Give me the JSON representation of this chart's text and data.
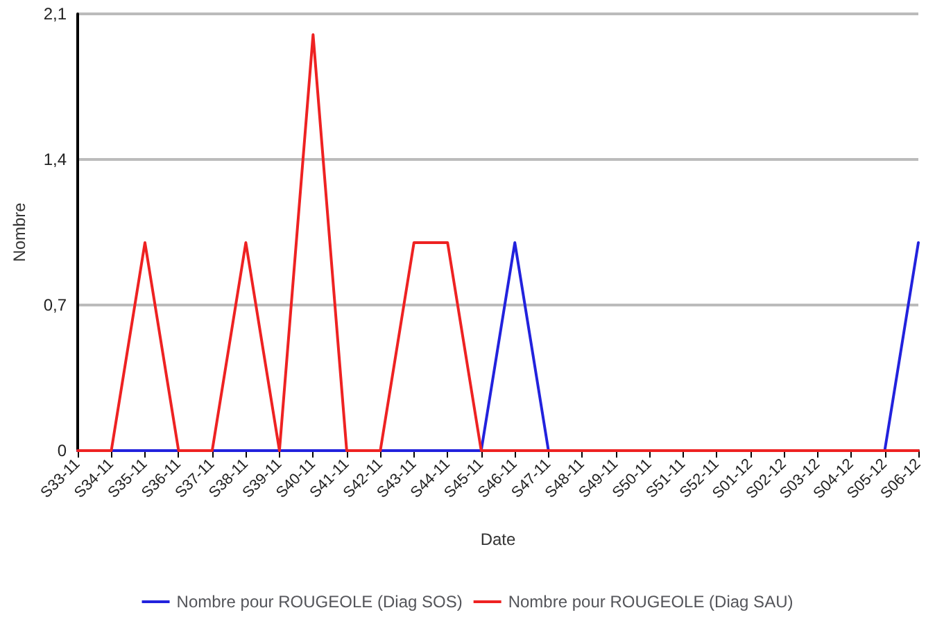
{
  "chart_data": {
    "type": "line",
    "xlabel": "Date",
    "ylabel": "Nombre",
    "categories": [
      "S33-11",
      "S34-11",
      "S35-11",
      "S36-11",
      "S37-11",
      "S38-11",
      "S39-11",
      "S40-11",
      "S41-11",
      "S42-11",
      "S43-11",
      "S44-11",
      "S45-11",
      "S46-11",
      "S47-11",
      "S48-11",
      "S49-11",
      "S50-11",
      "S51-11",
      "S52-11",
      "S01-12",
      "S02-12",
      "S03-12",
      "S04-12",
      "S05-12",
      "S06-12"
    ],
    "series": [
      {
        "name": "Nombre pour ROUGEOLE (Diag SOS)",
        "color": "#2222dd",
        "values": [
          0,
          0,
          0,
          0,
          0,
          0,
          0,
          0,
          0,
          0,
          0,
          0,
          0,
          1,
          0,
          0,
          0,
          0,
          0,
          0,
          0,
          0,
          0,
          0,
          0,
          1
        ]
      },
      {
        "name": "Nombre pour ROUGEOLE (Diag SAU)",
        "color": "#ee2222",
        "values": [
          0,
          0,
          1,
          0,
          0,
          1,
          0,
          2,
          0,
          0,
          1,
          1,
          0,
          0,
          0,
          0,
          0,
          0,
          0,
          0,
          0,
          0,
          0,
          0,
          0,
          0
        ]
      }
    ],
    "ylim": [
      0,
      2.1
    ],
    "yticks": [
      0,
      {
        "value": 0.7,
        "label": "0,7"
      },
      {
        "value": 1.4,
        "label": "1,4"
      },
      {
        "value": 2.1,
        "label": "2,1"
      }
    ],
    "grid": "y",
    "legend": "bottom",
    "marker": "none",
    "line_style": "solid"
  }
}
